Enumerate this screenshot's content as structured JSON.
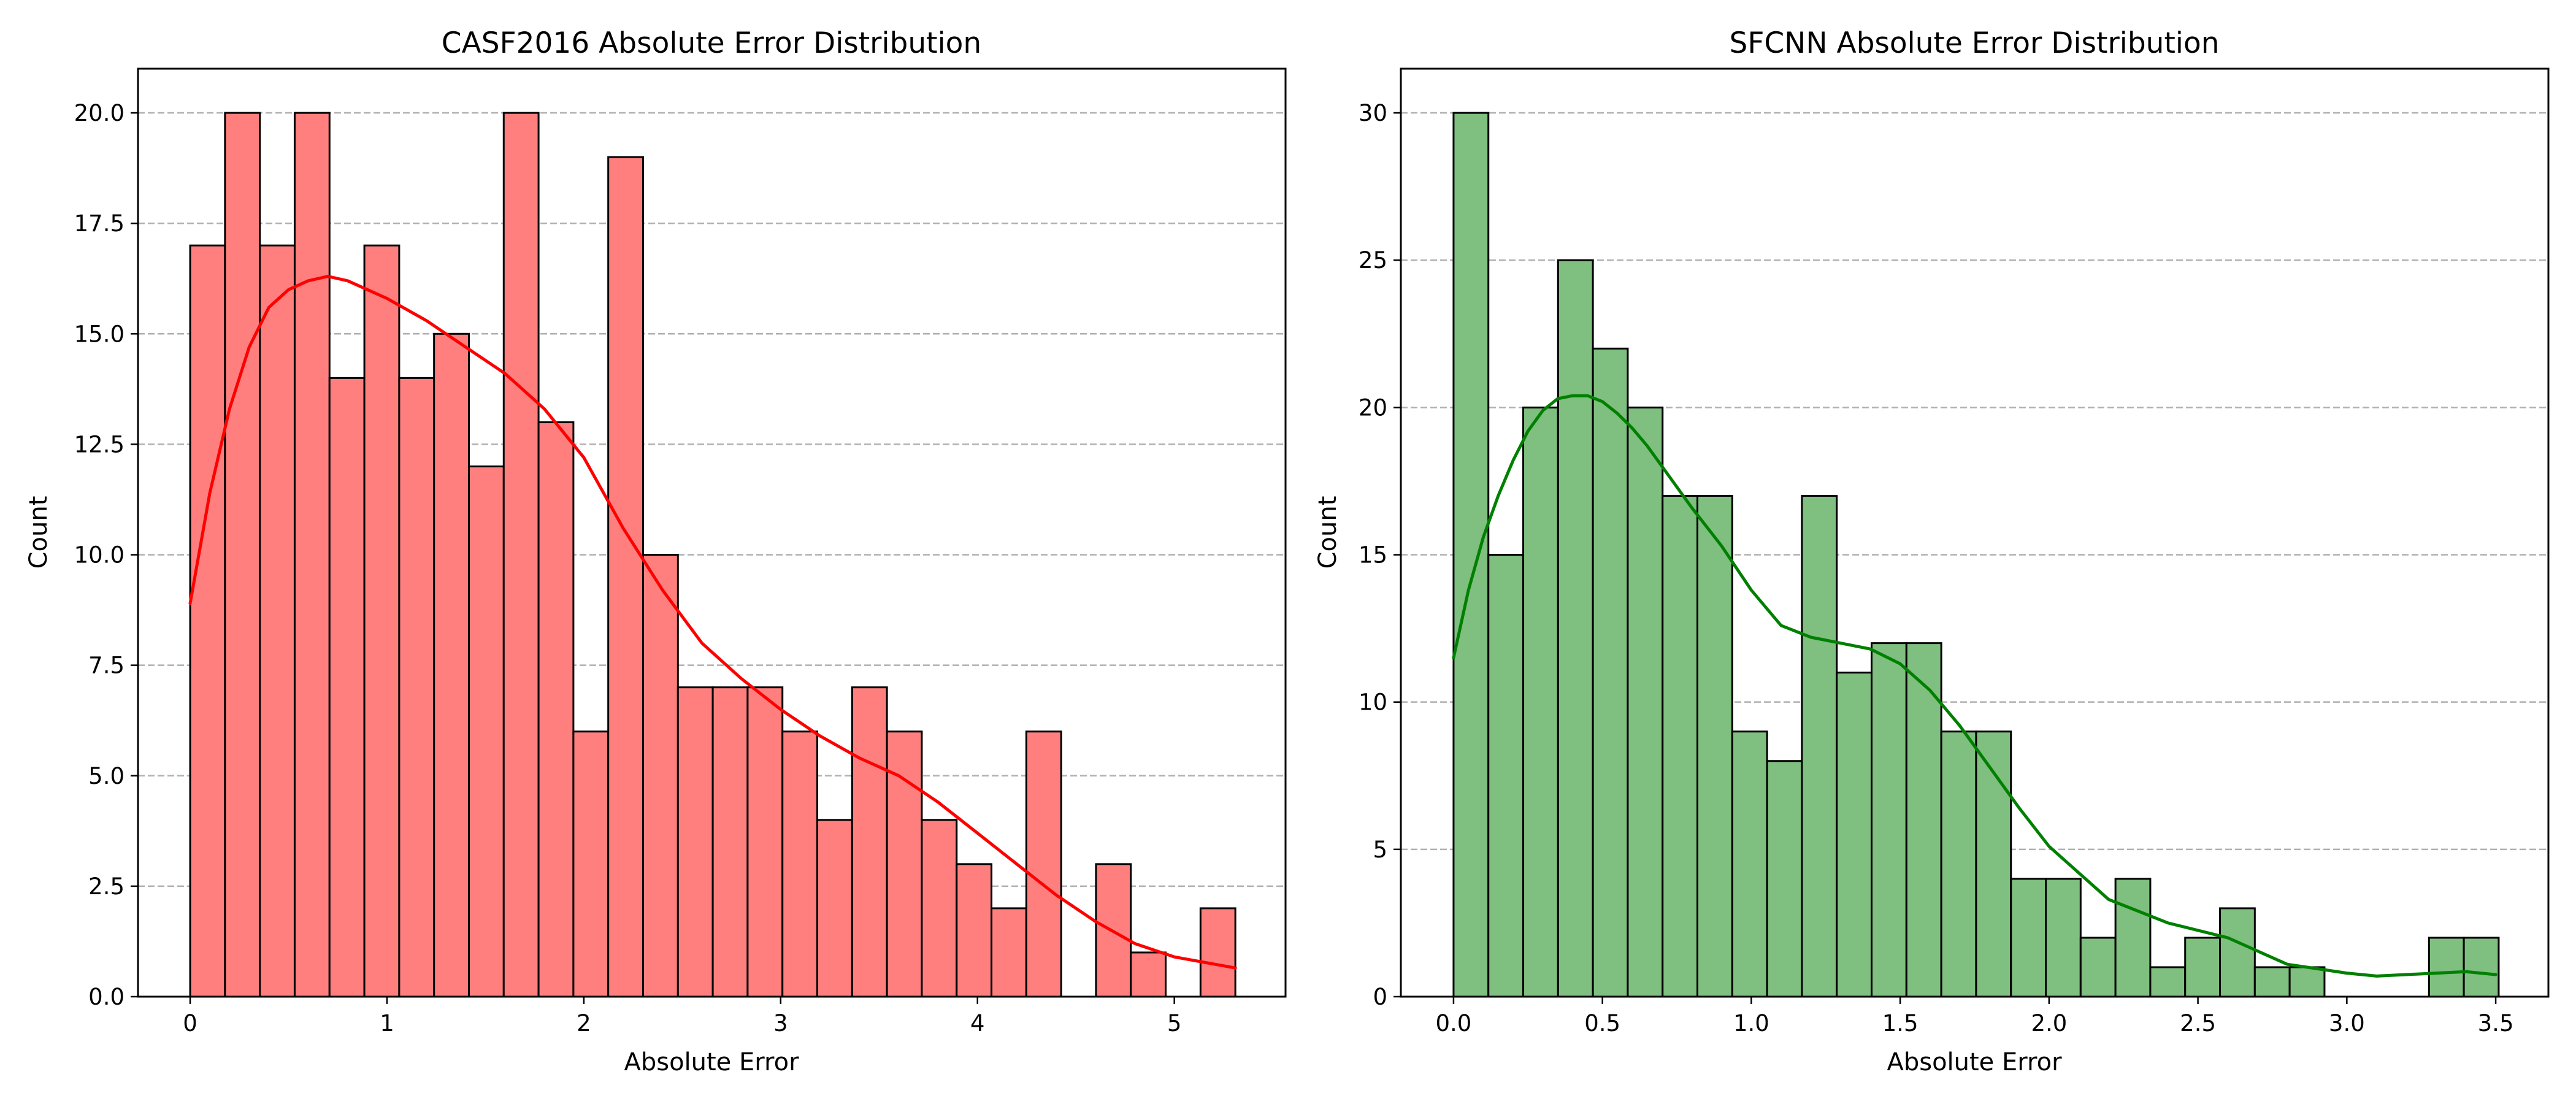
{
  "chart_data": [
    {
      "type": "histogram",
      "title": "CASF2016 Absolute Error Distribution",
      "xlabel": "Absolute Error",
      "ylabel": "Count",
      "xlim": [
        -0.265,
        5.565
      ],
      "ylim": [
        0,
        21
      ],
      "xticks": [
        0,
        1,
        2,
        3,
        4,
        5
      ],
      "xtick_labels": [
        "0",
        "1",
        "2",
        "3",
        "4",
        "5"
      ],
      "yticks": [
        0,
        2.5,
        5,
        7.5,
        10,
        12.5,
        15,
        17.5,
        20
      ],
      "ytick_labels": [
        "0.0",
        "2.5",
        "5.0",
        "7.5",
        "10.0",
        "12.5",
        "15.0",
        "17.5",
        "20.0"
      ],
      "grid": "y-dashed",
      "bar_color": "#ff7f7f",
      "edge_color": "#000000",
      "line_color": "#ff0000",
      "bins": [
        {
          "x0": 0.0,
          "x1": 0.177,
          "count": 17
        },
        {
          "x0": 0.177,
          "x1": 0.354,
          "count": 20
        },
        {
          "x0": 0.354,
          "x1": 0.531,
          "count": 17
        },
        {
          "x0": 0.531,
          "x1": 0.708,
          "count": 20
        },
        {
          "x0": 0.708,
          "x1": 0.885,
          "count": 14
        },
        {
          "x0": 0.885,
          "x1": 1.062,
          "count": 17
        },
        {
          "x0": 1.062,
          "x1": 1.239,
          "count": 14
        },
        {
          "x0": 1.239,
          "x1": 1.416,
          "count": 15
        },
        {
          "x0": 1.416,
          "x1": 1.593,
          "count": 12
        },
        {
          "x0": 1.593,
          "x1": 1.77,
          "count": 20
        },
        {
          "x0": 1.77,
          "x1": 1.947,
          "count": 13
        },
        {
          "x0": 1.947,
          "x1": 2.124,
          "count": 6
        },
        {
          "x0": 2.124,
          "x1": 2.301,
          "count": 19
        },
        {
          "x0": 2.301,
          "x1": 2.478,
          "count": 10
        },
        {
          "x0": 2.478,
          "x1": 2.655,
          "count": 7
        },
        {
          "x0": 2.655,
          "x1": 2.832,
          "count": 7
        },
        {
          "x0": 2.832,
          "x1": 3.009,
          "count": 7
        },
        {
          "x0": 3.009,
          "x1": 3.186,
          "count": 6
        },
        {
          "x0": 3.186,
          "x1": 3.363,
          "count": 4
        },
        {
          "x0": 3.363,
          "x1": 3.54,
          "count": 7
        },
        {
          "x0": 3.54,
          "x1": 3.717,
          "count": 6
        },
        {
          "x0": 3.717,
          "x1": 3.894,
          "count": 4
        },
        {
          "x0": 3.894,
          "x1": 4.071,
          "count": 3
        },
        {
          "x0": 4.071,
          "x1": 4.248,
          "count": 2
        },
        {
          "x0": 4.248,
          "x1": 4.425,
          "count": 6
        },
        {
          "x0": 4.425,
          "x1": 4.602,
          "count": 0
        },
        {
          "x0": 4.602,
          "x1": 4.779,
          "count": 3
        },
        {
          "x0": 4.779,
          "x1": 4.956,
          "count": 1
        },
        {
          "x0": 4.956,
          "x1": 5.133,
          "count": 0
        },
        {
          "x0": 5.133,
          "x1": 5.31,
          "count": 2
        }
      ],
      "kde": {
        "x": [
          0,
          0.1,
          0.2,
          0.3,
          0.4,
          0.5,
          0.6,
          0.7,
          0.8,
          0.9,
          1.0,
          1.2,
          1.4,
          1.6,
          1.8,
          2.0,
          2.2,
          2.4,
          2.6,
          2.8,
          3.0,
          3.2,
          3.4,
          3.6,
          3.8,
          4.0,
          4.2,
          4.4,
          4.6,
          4.8,
          5.0,
          5.31
        ],
        "y": [
          8.9,
          11.4,
          13.3,
          14.7,
          15.6,
          16.0,
          16.2,
          16.3,
          16.2,
          16.0,
          15.8,
          15.3,
          14.7,
          14.1,
          13.3,
          12.2,
          10.6,
          9.2,
          8.0,
          7.2,
          6.5,
          5.9,
          5.4,
          5.0,
          4.4,
          3.7,
          3.0,
          2.3,
          1.7,
          1.2,
          0.9,
          0.65
        ]
      }
    },
    {
      "type": "histogram",
      "title": "SFCNN Absolute Error Distribution",
      "xlabel": "Absolute Error",
      "ylabel": "Count",
      "xlim": [
        -0.177,
        3.677
      ],
      "ylim": [
        0,
        31.5
      ],
      "xticks": [
        0,
        0.5,
        1,
        1.5,
        2,
        2.5,
        3,
        3.5
      ],
      "xtick_labels": [
        "0.0",
        "0.5",
        "1.0",
        "1.5",
        "2.0",
        "2.5",
        "3.0",
        "3.5"
      ],
      "yticks": [
        0,
        5,
        10,
        15,
        20,
        25,
        30
      ],
      "ytick_labels": [
        "0",
        "5",
        "10",
        "15",
        "20",
        "25",
        "30"
      ],
      "grid": "y-dashed",
      "bar_color": "#7fbf7f",
      "edge_color": "#000000",
      "line_color": "#008000",
      "bins": [
        {
          "x0": 0.0,
          "x1": 0.117,
          "count": 30
        },
        {
          "x0": 0.117,
          "x1": 0.234,
          "count": 15
        },
        {
          "x0": 0.234,
          "x1": 0.351,
          "count": 20
        },
        {
          "x0": 0.351,
          "x1": 0.468,
          "count": 25
        },
        {
          "x0": 0.468,
          "x1": 0.585,
          "count": 22
        },
        {
          "x0": 0.585,
          "x1": 0.702,
          "count": 20
        },
        {
          "x0": 0.702,
          "x1": 0.819,
          "count": 17
        },
        {
          "x0": 0.819,
          "x1": 0.936,
          "count": 17
        },
        {
          "x0": 0.936,
          "x1": 1.053,
          "count": 9
        },
        {
          "x0": 1.053,
          "x1": 1.17,
          "count": 8
        },
        {
          "x0": 1.17,
          "x1": 1.287,
          "count": 17
        },
        {
          "x0": 1.287,
          "x1": 1.404,
          "count": 11
        },
        {
          "x0": 1.404,
          "x1": 1.521,
          "count": 12
        },
        {
          "x0": 1.521,
          "x1": 1.638,
          "count": 12
        },
        {
          "x0": 1.638,
          "x1": 1.755,
          "count": 9
        },
        {
          "x0": 1.755,
          "x1": 1.872,
          "count": 9
        },
        {
          "x0": 1.872,
          "x1": 1.989,
          "count": 4
        },
        {
          "x0": 1.989,
          "x1": 2.106,
          "count": 4
        },
        {
          "x0": 2.106,
          "x1": 2.223,
          "count": 2
        },
        {
          "x0": 2.223,
          "x1": 2.34,
          "count": 4
        },
        {
          "x0": 2.34,
          "x1": 2.457,
          "count": 1
        },
        {
          "x0": 2.457,
          "x1": 2.574,
          "count": 2
        },
        {
          "x0": 2.574,
          "x1": 2.691,
          "count": 3
        },
        {
          "x0": 2.691,
          "x1": 2.808,
          "count": 1
        },
        {
          "x0": 2.808,
          "x1": 2.925,
          "count": 1
        },
        {
          "x0": 2.925,
          "x1": 3.042,
          "count": 0
        },
        {
          "x0": 3.042,
          "x1": 3.159,
          "count": 0
        },
        {
          "x0": 3.159,
          "x1": 3.276,
          "count": 0
        },
        {
          "x0": 3.276,
          "x1": 3.393,
          "count": 2
        },
        {
          "x0": 3.393,
          "x1": 3.51,
          "count": 2
        }
      ],
      "kde": {
        "x": [
          0,
          0.05,
          0.1,
          0.15,
          0.2,
          0.25,
          0.3,
          0.35,
          0.4,
          0.45,
          0.5,
          0.55,
          0.6,
          0.65,
          0.7,
          0.8,
          0.9,
          1.0,
          1.1,
          1.2,
          1.3,
          1.4,
          1.5,
          1.6,
          1.7,
          1.8,
          1.9,
          2.0,
          2.2,
          2.4,
          2.6,
          2.8,
          3.0,
          3.1,
          3.2,
          3.3,
          3.4,
          3.5
        ],
        "y": [
          11.5,
          13.8,
          15.6,
          17.0,
          18.2,
          19.2,
          19.9,
          20.3,
          20.4,
          20.4,
          20.2,
          19.8,
          19.3,
          18.7,
          18.0,
          16.6,
          15.3,
          13.8,
          12.6,
          12.2,
          12.0,
          11.8,
          11.3,
          10.4,
          9.2,
          7.8,
          6.4,
          5.1,
          3.3,
          2.5,
          2.0,
          1.1,
          0.8,
          0.7,
          0.75,
          0.8,
          0.85,
          0.75
        ]
      }
    }
  ]
}
